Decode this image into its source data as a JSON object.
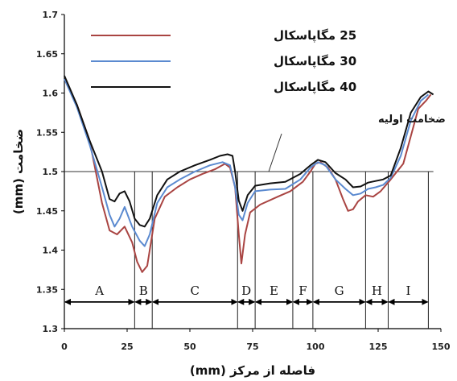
{
  "chart_data": {
    "type": "line",
    "title": "",
    "xlabel": "فاصله از مرکز (mm)",
    "ylabel": "ضخامت (mm)",
    "xlim": [
      0,
      150
    ],
    "ylim": [
      1.3,
      1.7
    ],
    "x_ticks": [
      0,
      25,
      50,
      75,
      100,
      125,
      150
    ],
    "y_ticks": [
      1.3,
      1.35,
      1.4,
      1.45,
      1.5,
      1.55,
      1.6,
      1.65,
      1.7
    ],
    "grid": false,
    "legend_position": "top-left",
    "reference_line": {
      "y": 1.5,
      "label": "ضخامت اولیه",
      "x_range": [
        0,
        147
      ]
    },
    "regions": [
      {
        "label": "A",
        "x_start": 0,
        "x_end": 28
      },
      {
        "label": "B",
        "x_start": 28,
        "x_end": 35
      },
      {
        "label": "C",
        "x_start": 35,
        "x_end": 69
      },
      {
        "label": "D",
        "x_start": 69,
        "x_end": 76
      },
      {
        "label": "E",
        "x_start": 76,
        "x_end": 91
      },
      {
        "label": "F",
        "x_start": 91,
        "x_end": 99
      },
      {
        "label": "G",
        "x_start": 99,
        "x_end": 120
      },
      {
        "label": "H",
        "x_start": 120,
        "x_end": 129
      },
      {
        "label": "I",
        "x_start": 129,
        "x_end": 145
      }
    ],
    "region_arrow_y": 1.334,
    "series": [
      {
        "name": "25 مگاپاسکال",
        "color": "#a94442",
        "points": [
          [
            0,
            1.618
          ],
          [
            5,
            1.585
          ],
          [
            10,
            1.54
          ],
          [
            15,
            1.46
          ],
          [
            18,
            1.425
          ],
          [
            21,
            1.42
          ],
          [
            24,
            1.43
          ],
          [
            27,
            1.41
          ],
          [
            29,
            1.385
          ],
          [
            31,
            1.372
          ],
          [
            33,
            1.38
          ],
          [
            36,
            1.44
          ],
          [
            40,
            1.468
          ],
          [
            45,
            1.48
          ],
          [
            50,
            1.49
          ],
          [
            55,
            1.497
          ],
          [
            60,
            1.503
          ],
          [
            64,
            1.51
          ],
          [
            66,
            1.505
          ],
          [
            68,
            1.48
          ],
          [
            69.5,
            1.42
          ],
          [
            70.5,
            1.383
          ],
          [
            72,
            1.42
          ],
          [
            74,
            1.448
          ],
          [
            78,
            1.458
          ],
          [
            85,
            1.468
          ],
          [
            90,
            1.475
          ],
          [
            95,
            1.487
          ],
          [
            98,
            1.5
          ],
          [
            100,
            1.51
          ],
          [
            102,
            1.512
          ],
          [
            105,
            1.505
          ],
          [
            108,
            1.49
          ],
          [
            111,
            1.465
          ],
          [
            113,
            1.45
          ],
          [
            115,
            1.452
          ],
          [
            117,
            1.462
          ],
          [
            120,
            1.47
          ],
          [
            123,
            1.468
          ],
          [
            126,
            1.475
          ],
          [
            130,
            1.49
          ],
          [
            135,
            1.51
          ],
          [
            138,
            1.545
          ],
          [
            141,
            1.58
          ],
          [
            144,
            1.59
          ],
          [
            146,
            1.598
          ]
        ]
      },
      {
        "name": "30 مگاپاسکال",
        "color": "#5b8ad0",
        "points": [
          [
            0,
            1.618
          ],
          [
            5,
            1.582
          ],
          [
            10,
            1.535
          ],
          [
            15,
            1.48
          ],
          [
            18,
            1.445
          ],
          [
            20,
            1.43
          ],
          [
            22,
            1.44
          ],
          [
            24,
            1.455
          ],
          [
            27,
            1.43
          ],
          [
            30,
            1.412
          ],
          [
            32,
            1.405
          ],
          [
            34,
            1.42
          ],
          [
            37,
            1.46
          ],
          [
            41,
            1.48
          ],
          [
            46,
            1.49
          ],
          [
            52,
            1.5
          ],
          [
            58,
            1.508
          ],
          [
            63,
            1.512
          ],
          [
            66,
            1.508
          ],
          [
            68,
            1.48
          ],
          [
            69.5,
            1.445
          ],
          [
            71,
            1.438
          ],
          [
            73,
            1.46
          ],
          [
            76,
            1.475
          ],
          [
            82,
            1.477
          ],
          [
            88,
            1.478
          ],
          [
            94,
            1.49
          ],
          [
            98,
            1.505
          ],
          [
            101,
            1.512
          ],
          [
            104,
            1.508
          ],
          [
            108,
            1.49
          ],
          [
            112,
            1.478
          ],
          [
            115,
            1.47
          ],
          [
            118,
            1.472
          ],
          [
            121,
            1.478
          ],
          [
            124,
            1.48
          ],
          [
            127,
            1.483
          ],
          [
            130,
            1.492
          ],
          [
            134,
            1.52
          ],
          [
            138,
            1.565
          ],
          [
            142,
            1.59
          ],
          [
            145,
            1.598
          ]
        ]
      },
      {
        "name": "40 مگاپاسکال",
        "color": "#111111",
        "points": [
          [
            0,
            1.622
          ],
          [
            5,
            1.585
          ],
          [
            10,
            1.54
          ],
          [
            15,
            1.5
          ],
          [
            18,
            1.465
          ],
          [
            20,
            1.462
          ],
          [
            22,
            1.472
          ],
          [
            24,
            1.475
          ],
          [
            26,
            1.462
          ],
          [
            28,
            1.44
          ],
          [
            30,
            1.432
          ],
          [
            32,
            1.43
          ],
          [
            34,
            1.44
          ],
          [
            37,
            1.47
          ],
          [
            41,
            1.49
          ],
          [
            46,
            1.5
          ],
          [
            52,
            1.508
          ],
          [
            58,
            1.515
          ],
          [
            62,
            1.52
          ],
          [
            65,
            1.522
          ],
          [
            67,
            1.52
          ],
          [
            68,
            1.5
          ],
          [
            69.5,
            1.463
          ],
          [
            71,
            1.45
          ],
          [
            73,
            1.47
          ],
          [
            76,
            1.482
          ],
          [
            82,
            1.485
          ],
          [
            88,
            1.487
          ],
          [
            94,
            1.497
          ],
          [
            98,
            1.508
          ],
          [
            101,
            1.515
          ],
          [
            104,
            1.512
          ],
          [
            108,
            1.498
          ],
          [
            112,
            1.49
          ],
          [
            115,
            1.48
          ],
          [
            118,
            1.481
          ],
          [
            121,
            1.486
          ],
          [
            124,
            1.488
          ],
          [
            127,
            1.49
          ],
          [
            130,
            1.495
          ],
          [
            134,
            1.53
          ],
          [
            138,
            1.575
          ],
          [
            142,
            1.595
          ],
          [
            145,
            1.602
          ],
          [
            147,
            1.598
          ]
        ]
      }
    ]
  }
}
